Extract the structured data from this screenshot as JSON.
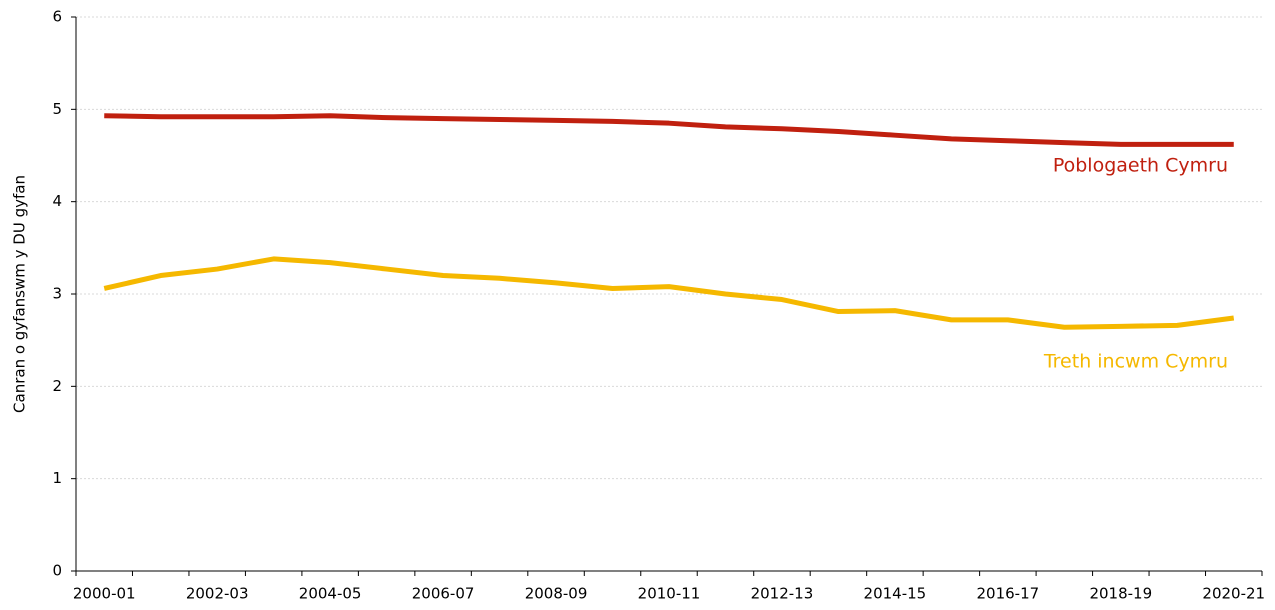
{
  "chart_data": {
    "type": "line",
    "y_label": "Canran o gyfanswm y DU gyfan",
    "categories": [
      "2000-01",
      null,
      "2002-03",
      null,
      "2004-05",
      null,
      "2006-07",
      null,
      "2008-09",
      null,
      "2010-11",
      null,
      "2012-13",
      null,
      "2014-15",
      null,
      "2016-17",
      null,
      "2018-19",
      null,
      "2020-21"
    ],
    "series": [
      {
        "name": "Poblogaeth Cymru",
        "color": "#c0200f",
        "values": [
          4.93,
          4.92,
          4.92,
          4.92,
          4.93,
          4.91,
          4.9,
          4.89,
          4.88,
          4.87,
          4.85,
          4.81,
          4.79,
          4.76,
          4.72,
          4.68,
          4.66,
          4.64,
          4.62,
          4.62,
          4.62
        ]
      },
      {
        "name": "Treth incwm Cymru",
        "color": "#f5b800",
        "values": [
          3.06,
          3.2,
          3.27,
          3.38,
          3.34,
          3.27,
          3.2,
          3.17,
          3.12,
          3.06,
          3.08,
          3.0,
          2.94,
          2.81,
          2.82,
          2.72,
          2.72,
          2.64,
          2.65,
          2.66,
          2.74
        ]
      }
    ],
    "ylim": [
      0,
      6
    ],
    "yticks": [
      0,
      1,
      2,
      3,
      4,
      5,
      6
    ],
    "grid": true
  }
}
